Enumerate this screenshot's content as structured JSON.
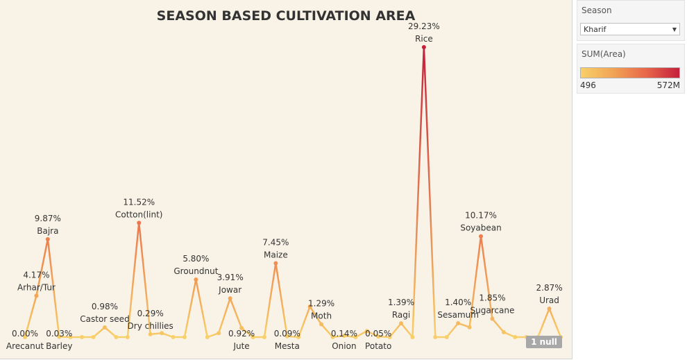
{
  "chart_data": {
    "type": "line",
    "title": "SEASON BASED CULTIVATION AREA",
    "null_badge": "1 null",
    "ylim": [
      0,
      29.23
    ],
    "x": [
      "Arecanut",
      "Arhar/Tur",
      "Bajra",
      "Barley",
      "",
      "",
      "",
      "Castor seed",
      "",
      "",
      "Cotton(lint)",
      "Dry chillies",
      "",
      "",
      "",
      "Groundnut",
      "",
      "",
      "Jowar",
      "Jute",
      "",
      "",
      "Maize",
      "Mesta",
      "",
      "Moth",
      "",
      "",
      "Onion",
      "",
      "",
      "Potato",
      "",
      "Ragi",
      "",
      "Rice",
      "",
      "",
      "Sesamum",
      "",
      "Soyabean",
      "Sugarcane",
      "",
      "",
      "",
      "",
      "Urad",
      ""
    ],
    "values": [
      0.0,
      4.17,
      9.87,
      0.03,
      0.0,
      0.0,
      0.0,
      0.98,
      0.0,
      0.0,
      11.52,
      0.29,
      0.4,
      0.0,
      0.0,
      5.8,
      0.0,
      0.4,
      3.91,
      0.92,
      0.0,
      0.0,
      7.45,
      0.09,
      0.0,
      3.08,
      1.29,
      0.0,
      0.14,
      0.0,
      0.6,
      0.05,
      0.0,
      1.39,
      0.0,
      29.23,
      0.0,
      0.0,
      1.4,
      1.0,
      10.17,
      1.85,
      0.5,
      0.0,
      0.0,
      0.0,
      2.87,
      0.0
    ],
    "labels": [
      {
        "i": 0,
        "pct": "0.00%",
        "name": "Arecanut",
        "below": true
      },
      {
        "i": 1,
        "pct": "4.17%",
        "name": "Arhar/Tur",
        "below": false
      },
      {
        "i": 2,
        "pct": "9.87%",
        "name": "Bajra",
        "below": false
      },
      {
        "i": 3,
        "pct": "0.03%",
        "name": "Barley",
        "below": true
      },
      {
        "i": 7,
        "pct": "0.98%",
        "name": "Castor seed",
        "below": false
      },
      {
        "i": 10,
        "pct": "11.52%",
        "name": "Cotton(lint)",
        "below": false
      },
      {
        "i": 11,
        "pct": "0.29%",
        "name": "Dry chillies",
        "below": false
      },
      {
        "i": 15,
        "pct": "5.80%",
        "name": "Groundnut",
        "below": false
      },
      {
        "i": 18,
        "pct": "3.91%",
        "name": "Jowar",
        "below": false
      },
      {
        "i": 19,
        "pct": "0.92%",
        "name": "Jute",
        "below": true
      },
      {
        "i": 22,
        "pct": "7.45%",
        "name": "Maize",
        "below": false
      },
      {
        "i": 23,
        "pct": "0.09%",
        "name": "Mesta",
        "below": true
      },
      {
        "i": 26,
        "pct": "1.29%",
        "name": "Moth",
        "below": false
      },
      {
        "i": 28,
        "pct": "0.14%",
        "name": "Onion",
        "below": true
      },
      {
        "i": 31,
        "pct": "0.05%",
        "name": "Potato",
        "below": true
      },
      {
        "i": 33,
        "pct": "1.39%",
        "name": "Ragi",
        "below": false
      },
      {
        "i": 35,
        "pct": "29.23%",
        "name": "Rice",
        "below": false
      },
      {
        "i": 38,
        "pct": "1.40%",
        "name": "Sesamum",
        "below": false
      },
      {
        "i": 40,
        "pct": "10.17%",
        "name": "Soyabean",
        "below": false
      },
      {
        "i": 41,
        "pct": "1.85%",
        "name": "Sugarcane",
        "below": false
      },
      {
        "i": 46,
        "pct": "2.87%",
        "name": "Urad",
        "below": false
      }
    ],
    "colors": {
      "low": "#f8d06a",
      "mid1": "#f1a355",
      "mid2": "#e8664a",
      "high": "#c4203c"
    }
  },
  "filter": {
    "title": "Season",
    "selected": "Kharif"
  },
  "legend": {
    "title": "SUM(Area)",
    "min": "496",
    "max": "572M"
  }
}
